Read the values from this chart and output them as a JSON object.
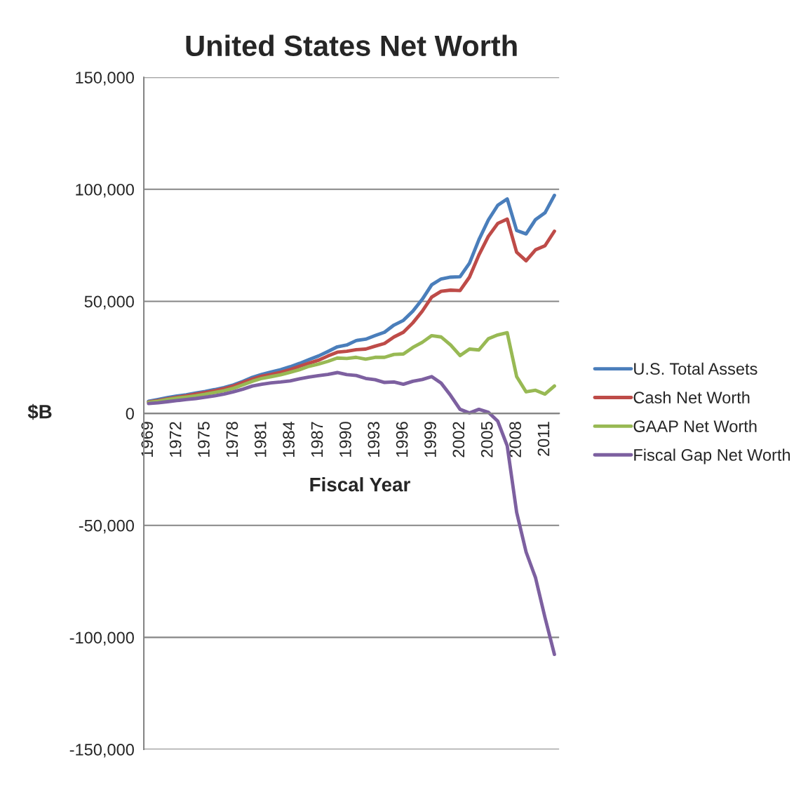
{
  "chart_data": {
    "type": "line",
    "title": "United States Net Worth",
    "xlabel": "Fiscal Year",
    "ylabel": "$B",
    "categories": [
      "1969",
      null,
      null,
      "1972",
      null,
      null,
      "1975",
      null,
      null,
      "1978",
      null,
      null,
      "1981",
      null,
      null,
      "1984",
      null,
      null,
      "1987",
      null,
      null,
      "1990",
      null,
      null,
      "1993",
      null,
      null,
      "1996",
      null,
      null,
      "1999",
      null,
      null,
      "2002",
      null,
      null,
      "2005",
      null,
      null,
      "2008",
      null,
      null,
      "2011",
      null
    ],
    "series": [
      {
        "name": "U.S. Total Assets",
        "color": "#4a7ebb",
        "values": [
          5400,
          6200,
          7000,
          7700,
          8300,
          9100,
          9800,
          10600,
          11500,
          12700,
          14300,
          16100,
          17400,
          18500,
          19500,
          20800,
          22300,
          24000,
          25600,
          27600,
          29700,
          30500,
          32500,
          33100,
          34700,
          36200,
          39400,
          41500,
          45600,
          50900,
          57400,
          60000,
          60800,
          61000,
          67000,
          77500,
          86300,
          92900,
          95700,
          81600,
          80100,
          86500,
          89500,
          97300
        ]
      },
      {
        "name": "Cash Net Worth",
        "color": "#be4b48",
        "values": [
          5100,
          5700,
          6500,
          7200,
          7800,
          8600,
          9300,
          10100,
          11000,
          12200,
          13800,
          15300,
          16600,
          17400,
          18300,
          19500,
          21000,
          22400,
          23700,
          25600,
          27300,
          27700,
          28400,
          28700,
          30000,
          31200,
          34100,
          36200,
          40400,
          45600,
          51900,
          54500,
          55000,
          54800,
          60800,
          70700,
          79000,
          84800,
          86700,
          71900,
          68100,
          73000,
          74800,
          81300
        ]
      },
      {
        "name": "GAAP Net Worth",
        "color": "#98b954",
        "values": [
          4900,
          5400,
          6200,
          6800,
          7300,
          7800,
          8500,
          9300,
          10100,
          11200,
          12700,
          14300,
          15600,
          16400,
          17200,
          18300,
          19500,
          21000,
          22000,
          23200,
          24700,
          24500,
          25000,
          24200,
          25000,
          25000,
          26300,
          26500,
          29400,
          31700,
          34700,
          34100,
          30500,
          25800,
          28700,
          28300,
          33300,
          35000,
          36000,
          16400,
          9600,
          10300,
          8600,
          12200
        ]
      },
      {
        "name": "Fiscal Gap Net Worth",
        "color": "#7d60a0",
        "values": [
          4400,
          4700,
          5200,
          5700,
          6200,
          6600,
          7200,
          7800,
          8600,
          9600,
          10800,
          12200,
          13000,
          13600,
          14000,
          14500,
          15400,
          16200,
          16800,
          17400,
          18200,
          17300,
          16900,
          15600,
          15000,
          13800,
          14000,
          13000,
          14300,
          15100,
          16400,
          13500,
          8000,
          1800,
          200,
          1800,
          500,
          -3500,
          -14500,
          -44200,
          -61900,
          -73400,
          -91100,
          -107600
        ]
      }
    ],
    "ylim": [
      -150000,
      150000
    ],
    "yticks": [
      {
        "value": -150000,
        "label": "-150,000"
      },
      {
        "value": -100000,
        "label": "-100,000"
      },
      {
        "value": -50000,
        "label": "-50,000"
      },
      0,
      {
        "value": 50000,
        "label": "50,000"
      },
      {
        "value": 100000,
        "label": "100,000"
      },
      {
        "value": 150000,
        "label": "150,000"
      }
    ],
    "grid": "y",
    "legend": "right",
    "marker": "none",
    "line_style": "solid"
  }
}
